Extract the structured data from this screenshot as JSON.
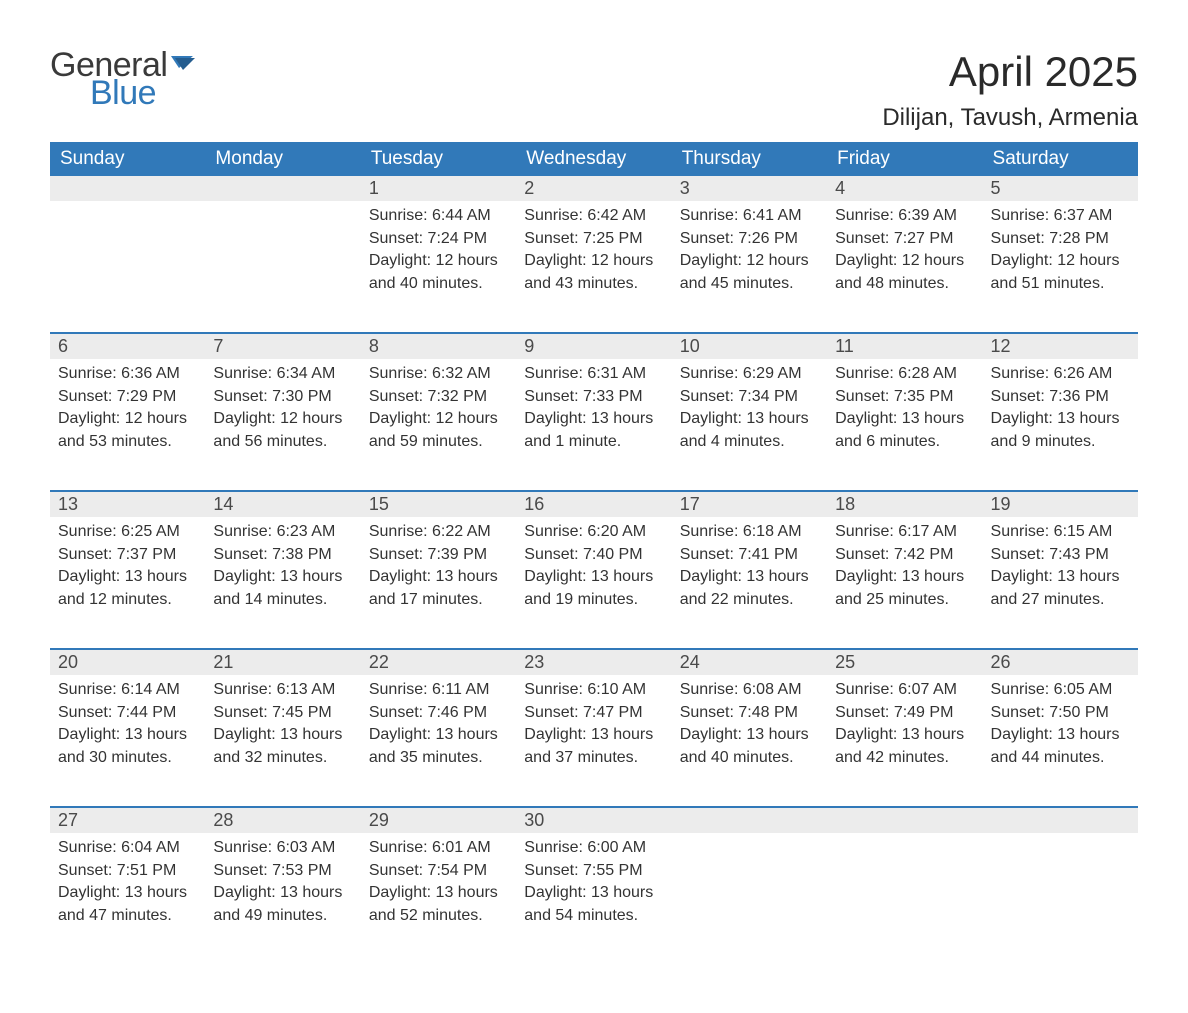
{
  "brand": {
    "word1": "General",
    "word2": "Blue"
  },
  "header": {
    "month_title": "April 2025",
    "location": "Dilijan, Tavush, Armenia"
  },
  "styling": {
    "page_bg": "#ffffff",
    "header_bar_bg": "#3179b9",
    "header_bar_text": "#ffffff",
    "daynum_bg": "#ececec",
    "daynum_text": "#4a4a4a",
    "row_divider": "#3179b9",
    "body_text": "#333333",
    "logo_general_color": "#3a3a3a",
    "logo_blue_color": "#3179b9",
    "title_color": "#2a2a2a",
    "month_title_fontsize": 42,
    "location_fontsize": 24,
    "weekday_fontsize": 19,
    "daynum_fontsize": 18,
    "body_fontsize": 16
  },
  "weekdays": [
    "Sunday",
    "Monday",
    "Tuesday",
    "Wednesday",
    "Thursday",
    "Friday",
    "Saturday"
  ],
  "weeks": [
    [
      null,
      null,
      {
        "n": "1",
        "sunrise": "Sunrise: 6:44 AM",
        "sunset": "Sunset: 7:24 PM",
        "d1": "Daylight: 12 hours",
        "d2": "and 40 minutes."
      },
      {
        "n": "2",
        "sunrise": "Sunrise: 6:42 AM",
        "sunset": "Sunset: 7:25 PM",
        "d1": "Daylight: 12 hours",
        "d2": "and 43 minutes."
      },
      {
        "n": "3",
        "sunrise": "Sunrise: 6:41 AM",
        "sunset": "Sunset: 7:26 PM",
        "d1": "Daylight: 12 hours",
        "d2": "and 45 minutes."
      },
      {
        "n": "4",
        "sunrise": "Sunrise: 6:39 AM",
        "sunset": "Sunset: 7:27 PM",
        "d1": "Daylight: 12 hours",
        "d2": "and 48 minutes."
      },
      {
        "n": "5",
        "sunrise": "Sunrise: 6:37 AM",
        "sunset": "Sunset: 7:28 PM",
        "d1": "Daylight: 12 hours",
        "d2": "and 51 minutes."
      }
    ],
    [
      {
        "n": "6",
        "sunrise": "Sunrise: 6:36 AM",
        "sunset": "Sunset: 7:29 PM",
        "d1": "Daylight: 12 hours",
        "d2": "and 53 minutes."
      },
      {
        "n": "7",
        "sunrise": "Sunrise: 6:34 AM",
        "sunset": "Sunset: 7:30 PM",
        "d1": "Daylight: 12 hours",
        "d2": "and 56 minutes."
      },
      {
        "n": "8",
        "sunrise": "Sunrise: 6:32 AM",
        "sunset": "Sunset: 7:32 PM",
        "d1": "Daylight: 12 hours",
        "d2": "and 59 minutes."
      },
      {
        "n": "9",
        "sunrise": "Sunrise: 6:31 AM",
        "sunset": "Sunset: 7:33 PM",
        "d1": "Daylight: 13 hours",
        "d2": "and 1 minute."
      },
      {
        "n": "10",
        "sunrise": "Sunrise: 6:29 AM",
        "sunset": "Sunset: 7:34 PM",
        "d1": "Daylight: 13 hours",
        "d2": "and 4 minutes."
      },
      {
        "n": "11",
        "sunrise": "Sunrise: 6:28 AM",
        "sunset": "Sunset: 7:35 PM",
        "d1": "Daylight: 13 hours",
        "d2": "and 6 minutes."
      },
      {
        "n": "12",
        "sunrise": "Sunrise: 6:26 AM",
        "sunset": "Sunset: 7:36 PM",
        "d1": "Daylight: 13 hours",
        "d2": "and 9 minutes."
      }
    ],
    [
      {
        "n": "13",
        "sunrise": "Sunrise: 6:25 AM",
        "sunset": "Sunset: 7:37 PM",
        "d1": "Daylight: 13 hours",
        "d2": "and 12 minutes."
      },
      {
        "n": "14",
        "sunrise": "Sunrise: 6:23 AM",
        "sunset": "Sunset: 7:38 PM",
        "d1": "Daylight: 13 hours",
        "d2": "and 14 minutes."
      },
      {
        "n": "15",
        "sunrise": "Sunrise: 6:22 AM",
        "sunset": "Sunset: 7:39 PM",
        "d1": "Daylight: 13 hours",
        "d2": "and 17 minutes."
      },
      {
        "n": "16",
        "sunrise": "Sunrise: 6:20 AM",
        "sunset": "Sunset: 7:40 PM",
        "d1": "Daylight: 13 hours",
        "d2": "and 19 minutes."
      },
      {
        "n": "17",
        "sunrise": "Sunrise: 6:18 AM",
        "sunset": "Sunset: 7:41 PM",
        "d1": "Daylight: 13 hours",
        "d2": "and 22 minutes."
      },
      {
        "n": "18",
        "sunrise": "Sunrise: 6:17 AM",
        "sunset": "Sunset: 7:42 PM",
        "d1": "Daylight: 13 hours",
        "d2": "and 25 minutes."
      },
      {
        "n": "19",
        "sunrise": "Sunrise: 6:15 AM",
        "sunset": "Sunset: 7:43 PM",
        "d1": "Daylight: 13 hours",
        "d2": "and 27 minutes."
      }
    ],
    [
      {
        "n": "20",
        "sunrise": "Sunrise: 6:14 AM",
        "sunset": "Sunset: 7:44 PM",
        "d1": "Daylight: 13 hours",
        "d2": "and 30 minutes."
      },
      {
        "n": "21",
        "sunrise": "Sunrise: 6:13 AM",
        "sunset": "Sunset: 7:45 PM",
        "d1": "Daylight: 13 hours",
        "d2": "and 32 minutes."
      },
      {
        "n": "22",
        "sunrise": "Sunrise: 6:11 AM",
        "sunset": "Sunset: 7:46 PM",
        "d1": "Daylight: 13 hours",
        "d2": "and 35 minutes."
      },
      {
        "n": "23",
        "sunrise": "Sunrise: 6:10 AM",
        "sunset": "Sunset: 7:47 PM",
        "d1": "Daylight: 13 hours",
        "d2": "and 37 minutes."
      },
      {
        "n": "24",
        "sunrise": "Sunrise: 6:08 AM",
        "sunset": "Sunset: 7:48 PM",
        "d1": "Daylight: 13 hours",
        "d2": "and 40 minutes."
      },
      {
        "n": "25",
        "sunrise": "Sunrise: 6:07 AM",
        "sunset": "Sunset: 7:49 PM",
        "d1": "Daylight: 13 hours",
        "d2": "and 42 minutes."
      },
      {
        "n": "26",
        "sunrise": "Sunrise: 6:05 AM",
        "sunset": "Sunset: 7:50 PM",
        "d1": "Daylight: 13 hours",
        "d2": "and 44 minutes."
      }
    ],
    [
      {
        "n": "27",
        "sunrise": "Sunrise: 6:04 AM",
        "sunset": "Sunset: 7:51 PM",
        "d1": "Daylight: 13 hours",
        "d2": "and 47 minutes."
      },
      {
        "n": "28",
        "sunrise": "Sunrise: 6:03 AM",
        "sunset": "Sunset: 7:53 PM",
        "d1": "Daylight: 13 hours",
        "d2": "and 49 minutes."
      },
      {
        "n": "29",
        "sunrise": "Sunrise: 6:01 AM",
        "sunset": "Sunset: 7:54 PM",
        "d1": "Daylight: 13 hours",
        "d2": "and 52 minutes."
      },
      {
        "n": "30",
        "sunrise": "Sunrise: 6:00 AM",
        "sunset": "Sunset: 7:55 PM",
        "d1": "Daylight: 13 hours",
        "d2": "and 54 minutes."
      },
      null,
      null,
      null
    ]
  ]
}
